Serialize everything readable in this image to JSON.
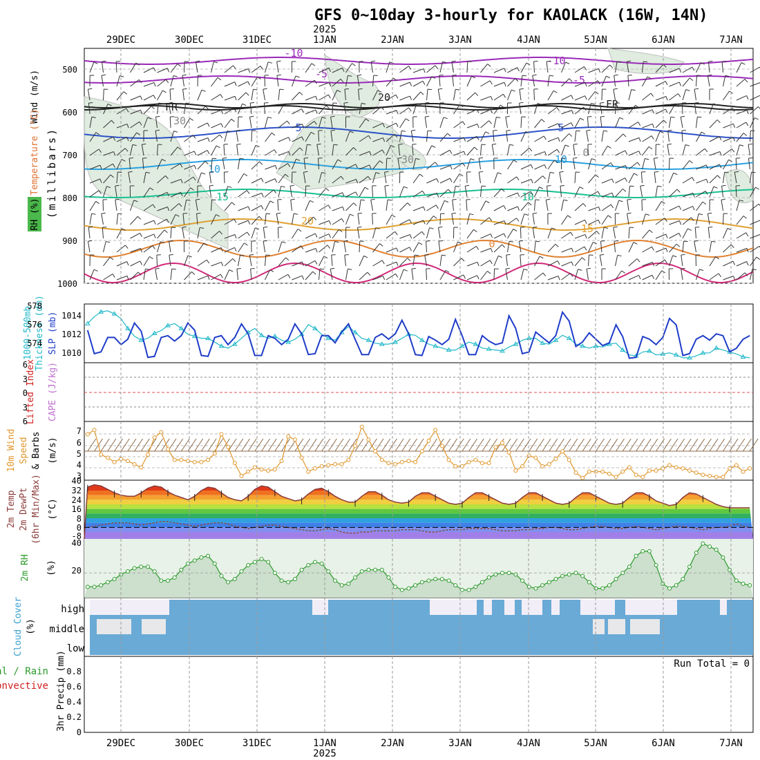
{
  "title": "GFS 0~10day 3-hourly for KAOLACK (16W, 14N)",
  "year_label": "2025",
  "date_labels": [
    "29DEC",
    "30DEC",
    "31DEC",
    "1JAN",
    "2JAN",
    "3JAN",
    "4JAN",
    "5JAN",
    "6JAN",
    "7JAN"
  ],
  "colors": {
    "thickness": "#20b8c8",
    "slp": "#1e3cc8",
    "wind10": "#e0962a",
    "rh": "#2a9a2a",
    "cloud": "#6aaad6",
    "rh_fill": "#c8dcc8",
    "temp_line": "#8a3a3a"
  },
  "panels": {
    "upper": {
      "ylabels": [
        "Wind (m/s)",
        "Temperature (°C)",
        "RH (%)",
        "(millibars)"
      ],
      "ticks": [
        "500",
        "600",
        "700",
        "800",
        "900",
        "1000"
      ],
      "contour_labels": [
        "-10",
        "-5",
        "FR",
        "5",
        "10",
        "15",
        "20",
        "10",
        "-10",
        "-5",
        "5",
        "10",
        "15",
        "20",
        "FR",
        "FR",
        "30",
        "30",
        "30",
        "0",
        "0"
      ]
    },
    "thickness": {
      "ylabel1": "1000-500mb",
      "ylabel2": "Thickness (dm)",
      "ylabel3": "SLP (mb)",
      "left_ticks": [
        "578",
        "576",
        "574"
      ],
      "right_ticks": [
        "1014",
        "1012",
        "1010"
      ]
    },
    "cape": {
      "ylabel1": "Lifted Index",
      "ylabel2": "CAPE (J/kg)",
      "ticks": [
        "6",
        "3",
        "0",
        "3",
        "6"
      ]
    },
    "wind10": {
      "ylabel1": "10m Wind",
      "ylabel2": "Speed",
      "ylabel3": "& Barbs",
      "ylabel4": "(m/s)",
      "ticks": [
        "7",
        "6",
        "5",
        "4",
        "3"
      ]
    },
    "temp2m": {
      "ylabel1": "2m Temp",
      "ylabel2": "2m DewPt",
      "ylabel3": "(6hr Min/Max)",
      "ylabel4": "(°C)",
      "ticks": [
        "40",
        "32",
        "24",
        "16",
        "8",
        "0",
        "-8"
      ]
    },
    "rh2m": {
      "ylabel1": "2m RH",
      "ylabel2": "(%)",
      "ticks": [
        "40",
        "20"
      ]
    },
    "cloud": {
      "ylabel1": "Cloud Cover",
      "ylabel2": "(%)",
      "levels": [
        "high",
        "middle",
        "low"
      ]
    },
    "precip": {
      "ylabel1": "3hr Precip (mm)",
      "ylabel2": "Total / Rain",
      "ylabel3": "Convective",
      "ticks": [
        "0.8",
        "0.6",
        "0.4",
        "0.2",
        "0"
      ],
      "run_total": "Run Total = 0"
    }
  },
  "chart_data": [
    {
      "type": "line",
      "title": "1000-500mb Thickness (dm) / SLP (mb)",
      "x_start": "28DEC 12Z",
      "x_step_hours": 3,
      "series": [
        {
          "name": "1000-500mb Thickness (dm)",
          "values": [
            576.5,
            577.2,
            577.7,
            577.8,
            577.5,
            577.0,
            576.0,
            575.2,
            574.8,
            575.0,
            575.5,
            575.8,
            576.3,
            576.5,
            576.0,
            575.4,
            575.2,
            575.0,
            575.0,
            574.6,
            574.2,
            574.0,
            574.4,
            575.0,
            575.6,
            576.0,
            575.3,
            575.0,
            575.2,
            574.8,
            574.6,
            574.9,
            575.4,
            576.4,
            576.0,
            575.4,
            575.0,
            574.8,
            575.6,
            576.2,
            575.6,
            575.0,
            574.8,
            574.5,
            574.4,
            574.4,
            574.6,
            575.0,
            575.4,
            575.3,
            574.8,
            574.4,
            574.2,
            574.0,
            573.8,
            573.8,
            574.2,
            574.6,
            574.4,
            574.0,
            573.9,
            573.8,
            573.7,
            574.1,
            574.4,
            574.8,
            575.0,
            575.0,
            574.5,
            574.4,
            574.8,
            575.3,
            575.0,
            574.4,
            574.2,
            574.0,
            574.2,
            574.1,
            574.4,
            574.5,
            573.8,
            573.3,
            573.2,
            573.6,
            573.7,
            573.3,
            573.4,
            573.5,
            573.3,
            573.0,
            573.0,
            573.2,
            573.5,
            573.5,
            574.0,
            573.8,
            573.6,
            573.4,
            573.1,
            573.0
          ]
        },
        {
          "name": "SLP (mb)",
          "values": [
            1012.6,
            1010.0,
            1010.2,
            1011.8,
            1011.8,
            1011.0,
            1011.6,
            1013.4,
            1012.5,
            1009.6,
            1009.7,
            1011.8,
            1012.0,
            1011.4,
            1012.0,
            1013.4,
            1012.6,
            1009.8,
            1009.7,
            1011.8,
            1012.0,
            1011.0,
            1011.8,
            1013.3,
            1012.2,
            1009.8,
            1009.8,
            1012.0,
            1011.7,
            1011.0,
            1011.6,
            1013.3,
            1012.2,
            1009.9,
            1010.0,
            1012.0,
            1012.0,
            1011.2,
            1012.4,
            1013.3,
            1011.6,
            1009.9,
            1009.9,
            1011.8,
            1012.2,
            1011.6,
            1012.2,
            1013.7,
            1012.2,
            1009.9,
            1009.8,
            1011.9,
            1011.5,
            1011.0,
            1011.6,
            1013.8,
            1012.0,
            1009.9,
            1009.9,
            1012.0,
            1011.4,
            1011.0,
            1011.2,
            1014.2,
            1012.8,
            1010.0,
            1010.2,
            1012.4,
            1011.8,
            1011.2,
            1012.0,
            1014.6,
            1013.6,
            1010.8,
            1011.3,
            1012.3,
            1011.6,
            1010.9,
            1011.2,
            1013.2,
            1011.9,
            1009.5,
            1009.6,
            1011.9,
            1011.6,
            1011.0,
            1011.8,
            1013.9,
            1013.2,
            1009.8,
            1010.0,
            1011.6,
            1012.0,
            1011.5,
            1012.2,
            1012.0,
            1010.2,
            1010.6,
            1011.6,
            1012.0
          ]
        }
      ],
      "ylim_left": [
        572.5,
        578.5
      ],
      "ylim_right": [
        1009,
        1015.5
      ]
    },
    {
      "type": "line",
      "title": "10m Wind Speed (m/s)",
      "x_start": "28DEC 12Z",
      "x_step_hours": 3,
      "series": [
        {
          "name": "10m Wind Speed",
          "values": [
            6.8,
            7.2,
            4.9,
            4.6,
            4.2,
            4.5,
            4.3,
            4.0,
            3.7,
            4.9,
            6.5,
            7.0,
            5.4,
            4.4,
            4.4,
            4.3,
            4.2,
            4.2,
            4.4,
            5.0,
            6.8,
            5.6,
            4.1,
            2.9,
            3.3,
            3.7,
            3.5,
            3.4,
            3.5,
            4.3,
            6.6,
            6.3,
            4.6,
            3.3,
            3.6,
            3.8,
            3.9,
            4.0,
            4.0,
            4.4,
            5.7,
            7.5,
            6.3,
            5.2,
            4.4,
            4.1,
            4.0,
            4.2,
            4.3,
            4.2,
            5.2,
            6.2,
            7.2,
            5.7,
            4.4,
            3.8,
            3.8,
            4.2,
            4.4,
            4.1,
            4.1,
            5.6,
            6.0,
            5.1,
            3.4,
            3.8,
            4.8,
            4.6,
            3.8,
            4.0,
            4.5,
            5.2,
            4.4,
            3.2,
            2.7,
            3.3,
            3.3,
            3.3,
            3.1,
            2.8,
            3.3,
            3.7,
            3.0,
            2.8,
            3.4,
            3.4,
            3.6,
            3.9,
            3.7,
            3.6,
            3.4,
            3.2,
            3.0,
            2.9,
            2.8,
            2.8,
            3.6,
            3.9,
            3.3,
            3.6
          ]
        }
      ],
      "ylim": [
        2.5,
        8
      ]
    },
    {
      "type": "line",
      "title": "2m RH (%)",
      "x_start": "28DEC 12Z",
      "x_step_hours": 3,
      "series": [
        {
          "name": "2m RH",
          "values": [
            11,
            11,
            12,
            14,
            16,
            19,
            21,
            23,
            24,
            24,
            21,
            15,
            15,
            17,
            22,
            26,
            28,
            30,
            31,
            26,
            18,
            14,
            16,
            21,
            25,
            27,
            29,
            27,
            20,
            15,
            14,
            16,
            22,
            25,
            27,
            26,
            21,
            15,
            12,
            13,
            17,
            21,
            22,
            22,
            22,
            17,
            11,
            9,
            10,
            12,
            14,
            15,
            16,
            16,
            15,
            12,
            9,
            9,
            11,
            14,
            17,
            19,
            20,
            20,
            19,
            15,
            11,
            10,
            12,
            14,
            16,
            18,
            19,
            20,
            18,
            14,
            10,
            10,
            12,
            16,
            20,
            24,
            31,
            34,
            34,
            25,
            13,
            10,
            12,
            16,
            24,
            33,
            39,
            37,
            35,
            30,
            22,
            15,
            13,
            12
          ]
        }
      ],
      "ylim": [
        4,
        42
      ]
    },
    {
      "type": "area",
      "title": "2m Temp / 2m DewPt (°C)",
      "x_start": "28DEC 12Z",
      "x_step_hours": 3,
      "series": [
        {
          "name": "2m Temp",
          "values": [
            35,
            37,
            36,
            33,
            30,
            28,
            27,
            27,
            30,
            34,
            36,
            35,
            31,
            28,
            26,
            24,
            27,
            32,
            35,
            34,
            30,
            26,
            24,
            23,
            27,
            33,
            36,
            35,
            31,
            27,
            25,
            23,
            24,
            29,
            33,
            34,
            31,
            27,
            24,
            22,
            22,
            27,
            31,
            31,
            28,
            24,
            22,
            21,
            22,
            27,
            30,
            30,
            27,
            24,
            21,
            20,
            21,
            26,
            30,
            30,
            27,
            24,
            21,
            20,
            21,
            26,
            30,
            30,
            27,
            24,
            21,
            20,
            21,
            26,
            30,
            30,
            27,
            24,
            21,
            20,
            21,
            26,
            30,
            30,
            27,
            23,
            21,
            19,
            20,
            26,
            30,
            29,
            26,
            23,
            20,
            18,
            17,
            17,
            17,
            17
          ]
        },
        {
          "name": "2m DewPt",
          "values": [
            0,
            1,
            2,
            3,
            4,
            4,
            4,
            3,
            2,
            3,
            4,
            5,
            5,
            4,
            3,
            2,
            1,
            2,
            3,
            4,
            4,
            3,
            1,
            0,
            -1,
            0,
            1,
            2,
            2,
            1,
            0,
            -1,
            -2,
            -3,
            -3,
            -2,
            -1,
            -2,
            -4,
            -5,
            -5,
            -4,
            -4,
            -3,
            -3,
            -3,
            -3,
            -2,
            -2,
            -2,
            -3,
            -4,
            -4,
            -3,
            -2,
            -2,
            -2,
            -1,
            -1,
            -1,
            -1,
            -2,
            -3,
            -3,
            -3,
            -2,
            -2,
            -1,
            -1,
            0,
            0,
            -1,
            -2,
            -2,
            -1,
            0,
            1,
            1,
            0,
            -1,
            -1,
            0,
            1,
            0,
            -1,
            -2,
            -1,
            0,
            1,
            1,
            0,
            -1,
            -2,
            -1,
            0,
            0,
            1,
            3,
            1,
            0
          ]
        }
      ],
      "ylim": [
        -10,
        41
      ]
    },
    {
      "type": "heatmap",
      "title": "Cloud Cover (%)",
      "x_start": "28DEC 12Z",
      "x_step_hours": 3,
      "rows": [
        "high",
        "middle",
        "low"
      ],
      "note": "Values are cloud cover percent for each 3-hour block; most columns are fully overcast (100) at middle/low levels."
    },
    {
      "type": "bar",
      "title": "3hr Precip (mm)",
      "x_start": "28DEC 12Z",
      "x_step_hours": 3,
      "series": [
        {
          "name": "Total / Rain",
          "values": [
            0,
            0,
            0,
            0,
            0,
            0,
            0,
            0,
            0,
            0
          ]
        },
        {
          "name": "Convective",
          "values": [
            0,
            0,
            0,
            0,
            0,
            0,
            0,
            0,
            0,
            0
          ]
        }
      ],
      "ylim": [
        0,
        0.95
      ]
    }
  ]
}
